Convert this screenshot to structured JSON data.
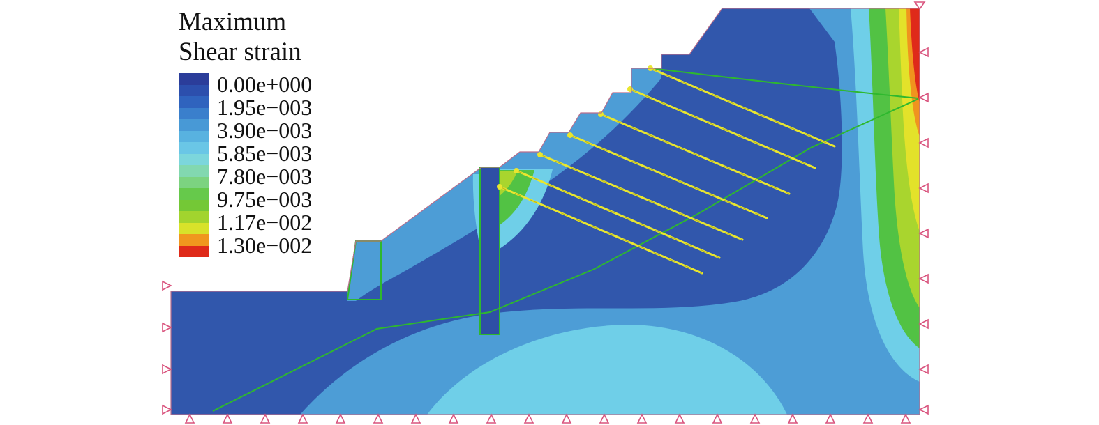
{
  "legend": {
    "title_line1": "Maximum",
    "title_line2": "Shear strain",
    "items": [
      {
        "label": "0.00e+000",
        "value": 0.0
      },
      {
        "label": "1.95e−003",
        "value": 0.00195
      },
      {
        "label": "3.90e−003",
        "value": 0.0039
      },
      {
        "label": "5.85e−003",
        "value": 0.00585
      },
      {
        "label": "7.80e−003",
        "value": 0.0078
      },
      {
        "label": "9.75e−003",
        "value": 0.00975
      },
      {
        "label": "1.17e−002",
        "value": 0.0117
      },
      {
        "label": "1.30e−002",
        "value": 0.013
      }
    ],
    "colors": [
      "#2B3D9A",
      "#2C4FAD",
      "#2F63BE",
      "#3A7FCC",
      "#4899D6",
      "#58B2E0",
      "#6AC6E6",
      "#7CD6DC",
      "#82D8B0",
      "#7CD380",
      "#66C94B",
      "#74C836",
      "#A2D42E",
      "#D8E22A",
      "#F0971E",
      "#DF2A1A"
    ]
  },
  "scene": {
    "background": "#FFFFFF",
    "base_blue": "#3157AC",
    "light_blue": "#4D9DD6",
    "cyan": "#6FCFE8",
    "green": "#52C244",
    "yellow_green": "#A9D52E",
    "yellow": "#E3E22A",
    "orange": "#F0941E",
    "red": "#DF2A1A",
    "pile_blue": "#2E4FA5",
    "interface_green": "#2EB82E",
    "anchor_yellow": "#E9E62F",
    "anchor_dash": "#B9B81E",
    "marker_pink": "#D9537D",
    "outline_pink": "#BA6E8C"
  },
  "chart_data": {
    "type": "heatmap",
    "title": "Maximum Shear strain",
    "variable": "maximum shear strain (contour plot of a benched slope cross-section)",
    "levels": [
      0.0,
      0.00195,
      0.0039,
      0.00585,
      0.0078,
      0.00975,
      0.0117,
      0.013
    ],
    "level_labels": [
      "0.00e+000",
      "1.95e−003",
      "3.90e−003",
      "5.85e−003",
      "7.80e−003",
      "9.75e−003",
      "1.17e−002",
      "1.30e−002"
    ],
    "colorscale": [
      "#2B3D9A",
      "#2C4FAD",
      "#2F63BE",
      "#3A7FCC",
      "#4899D6",
      "#58B2E0",
      "#6AC6E6",
      "#7CD6DC",
      "#82D8B0",
      "#7CD380",
      "#66C94B",
      "#74C836",
      "#A2D42E",
      "#D8E22A",
      "#F0971E",
      "#DF2A1A"
    ],
    "legend_position": "top-left",
    "features": {
      "anchors_count": 7,
      "retaining_pile": true,
      "interface_lines": 2,
      "high_strain_zones": [
        "localized green/yellow zone behind pile at mid-slope",
        "vertical rainbow band at right boundary with maximum (red) at top-right corner"
      ],
      "boundary_markers": "pink roller supports on left, right and bottom edges"
    }
  }
}
